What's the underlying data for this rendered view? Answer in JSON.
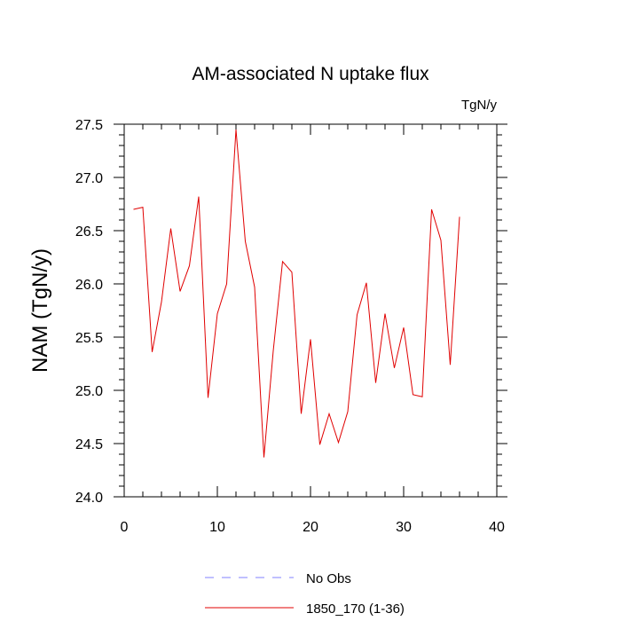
{
  "chart_data": {
    "type": "line",
    "title": "AM-associated N uptake flux",
    "units_label": "TgN/y",
    "ylabel": "NAM  (TgN/y)",
    "xlabel": "",
    "xlim": [
      0,
      40
    ],
    "ylim": [
      24.0,
      27.5
    ],
    "x_ticks": [
      0,
      10,
      20,
      30,
      40
    ],
    "x_tick_labels": [
      "0",
      "10",
      "20",
      "30",
      "40"
    ],
    "y_ticks": [
      24.0,
      24.5,
      25.0,
      25.5,
      26.0,
      26.5,
      27.0,
      27.5
    ],
    "y_tick_labels": [
      "24.0",
      "24.5",
      "25.0",
      "25.5",
      "26.0",
      "26.5",
      "27.0",
      "27.5"
    ],
    "grid": false,
    "legend_position": "bottom",
    "series": [
      {
        "name": "No Obs",
        "color": "#8080ff",
        "style": "dashed",
        "x": [],
        "values": []
      },
      {
        "name": "1850_170 (1-36)",
        "color": "#e00000",
        "style": "solid",
        "x": [
          1,
          2,
          3,
          4,
          5,
          6,
          7,
          8,
          9,
          10,
          11,
          12,
          13,
          14,
          15,
          16,
          17,
          18,
          19,
          20,
          21,
          22,
          23,
          24,
          25,
          26,
          27,
          28,
          29,
          30,
          31,
          32,
          33,
          34,
          35,
          36
        ],
        "values": [
          26.7,
          26.72,
          25.36,
          25.83,
          26.52,
          25.93,
          26.17,
          26.82,
          24.93,
          25.72,
          26.0,
          27.45,
          26.4,
          25.97,
          24.37,
          25.37,
          26.21,
          26.11,
          24.78,
          25.48,
          24.49,
          24.78,
          24.51,
          24.8,
          25.71,
          26.01,
          25.07,
          25.72,
          25.21,
          25.59,
          24.96,
          24.94,
          26.7,
          26.41,
          25.24,
          26.63
        ]
      }
    ]
  }
}
